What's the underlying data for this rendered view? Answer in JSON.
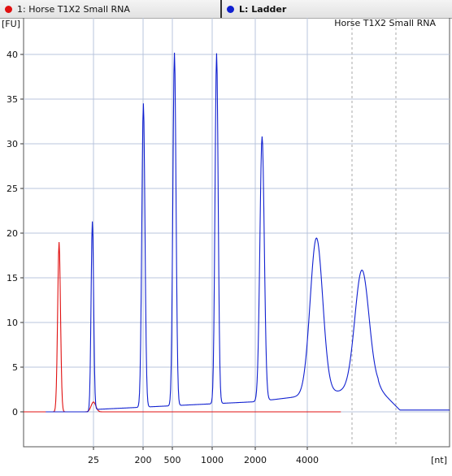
{
  "tabs": [
    {
      "label": "1: Horse T1X2 Small RNA",
      "color": "#e01010"
    },
    {
      "label": "L: Ladder",
      "color": "#1020d0"
    }
  ],
  "chart_data": {
    "type": "line",
    "title": "Horse T1X2 Small RNA",
    "ylabel": "[FU]",
    "xlabel": "[nt]",
    "ylim": [
      -4,
      43
    ],
    "yticks": [
      0,
      5,
      10,
      15,
      20,
      25,
      30,
      35,
      40
    ],
    "xticks": [
      "25",
      "200",
      "500",
      "1000",
      "2000",
      "4000"
    ],
    "grid": true,
    "series": [
      {
        "name": "1: Horse T1X2 Small RNA",
        "color": "#e01010",
        "x_units": "index",
        "peaks": [
          {
            "x": 16,
            "height": 19.0,
            "width": 0.9
          },
          {
            "x": 31.5,
            "height": 1.1,
            "width": 1.5
          }
        ],
        "baseline": 0.0,
        "x_range": [
          0,
          143
        ]
      },
      {
        "name": "L: Ladder",
        "color": "#1020d0",
        "peaks": [
          {
            "x": 31,
            "height": 21.3,
            "width": 0.8
          },
          {
            "x": 54,
            "height": 34.0,
            "width": 1.0
          },
          {
            "x": 68,
            "height": 39.5,
            "width": 1.0
          },
          {
            "x": 87,
            "height": 39.2,
            "width": 1.0
          },
          {
            "x": 107.5,
            "height": 29.6,
            "width": 1.4
          },
          {
            "x": 132,
            "height": 17.5,
            "width": 4.0
          },
          {
            "x": 152.5,
            "height": 13.3,
            "width": 4.5
          }
        ],
        "x_range": [
          10,
          192
        ]
      }
    ]
  }
}
